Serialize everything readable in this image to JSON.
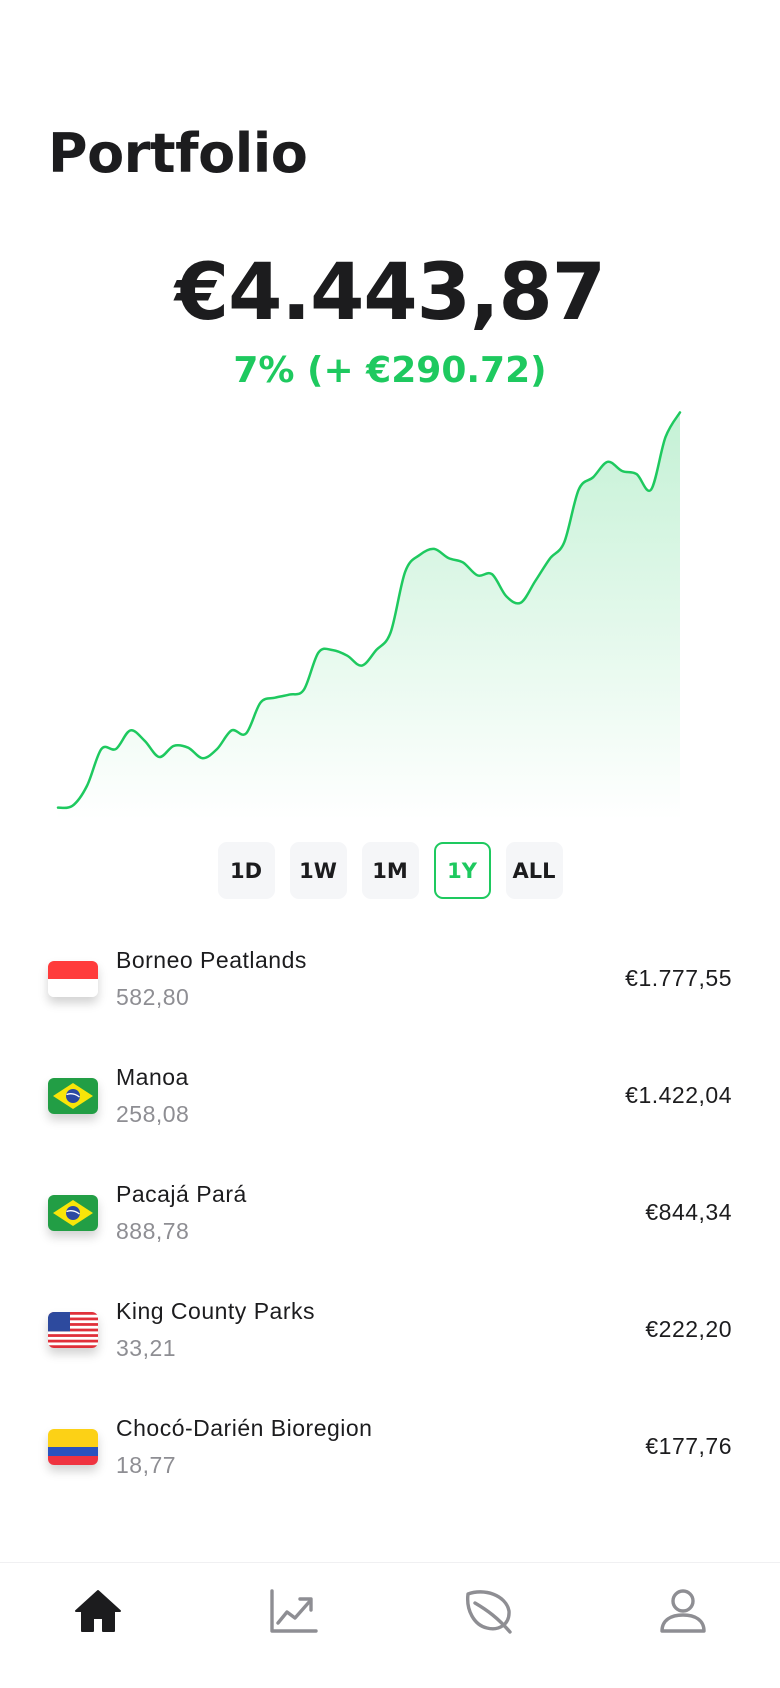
{
  "header": {
    "title": "Portfolio"
  },
  "summary": {
    "balance": "€4.443,87",
    "change": "7% (+ €290.72)"
  },
  "chart_data": {
    "type": "area",
    "title": "",
    "xlabel": "",
    "ylabel": "",
    "color": "#1ec95f",
    "x": [
      0,
      1,
      2,
      3,
      4,
      5,
      6,
      7,
      8,
      9,
      10,
      11,
      12,
      13,
      14,
      15,
      16,
      17,
      18,
      19,
      20,
      21,
      22,
      23,
      24,
      25,
      26,
      27,
      28,
      29,
      30,
      31,
      32,
      33,
      34,
      35,
      36,
      37,
      38,
      39,
      40,
      41,
      42,
      43
    ],
    "y": [
      1000,
      1003,
      1035,
      1095,
      1095,
      1125,
      1108,
      1082,
      1100,
      1097,
      1080,
      1095,
      1125,
      1120,
      1170,
      1178,
      1183,
      1191,
      1251,
      1255,
      1246,
      1230,
      1255,
      1284,
      1382,
      1409,
      1419,
      1404,
      1397,
      1376,
      1378,
      1342,
      1332,
      1367,
      1403,
      1430,
      1515,
      1535,
      1560,
      1545,
      1540,
      1515,
      1600,
      1640
    ],
    "ylim": [
      980,
      1660
    ]
  },
  "range_tabs": {
    "items": [
      {
        "label": "1D"
      },
      {
        "label": "1W"
      },
      {
        "label": "1M"
      },
      {
        "label": "1Y"
      },
      {
        "label": "ALL"
      }
    ],
    "selected": "1Y"
  },
  "holdings": [
    {
      "name": "Borneo Peatlands",
      "quantity": "582,80",
      "value": "€1.777,55",
      "flag": "indonesia-flag"
    },
    {
      "name": "Manoa",
      "quantity": "258,08",
      "value": "€1.422,04",
      "flag": "brazil-flag"
    },
    {
      "name": "Pacajá Pará",
      "quantity": "888,78",
      "value": "€844,34",
      "flag": "brazil-flag"
    },
    {
      "name": "King County Parks",
      "quantity": "33,21",
      "value": "€222,20",
      "flag": "usa-flag"
    },
    {
      "name": "Chocó-Darién Bioregion",
      "quantity": "18,77",
      "value": "€177,76",
      "flag": "colombia-flag"
    }
  ],
  "tabbar": {
    "items": [
      {
        "icon": "home-icon",
        "active": true
      },
      {
        "icon": "chart-icon",
        "active": false
      },
      {
        "icon": "leaf-icon",
        "active": false
      },
      {
        "icon": "profile-icon",
        "active": false
      }
    ]
  },
  "colors": {
    "accent": "#1ec95f",
    "text": "#1c1c1e",
    "muted": "#8e8e93"
  }
}
